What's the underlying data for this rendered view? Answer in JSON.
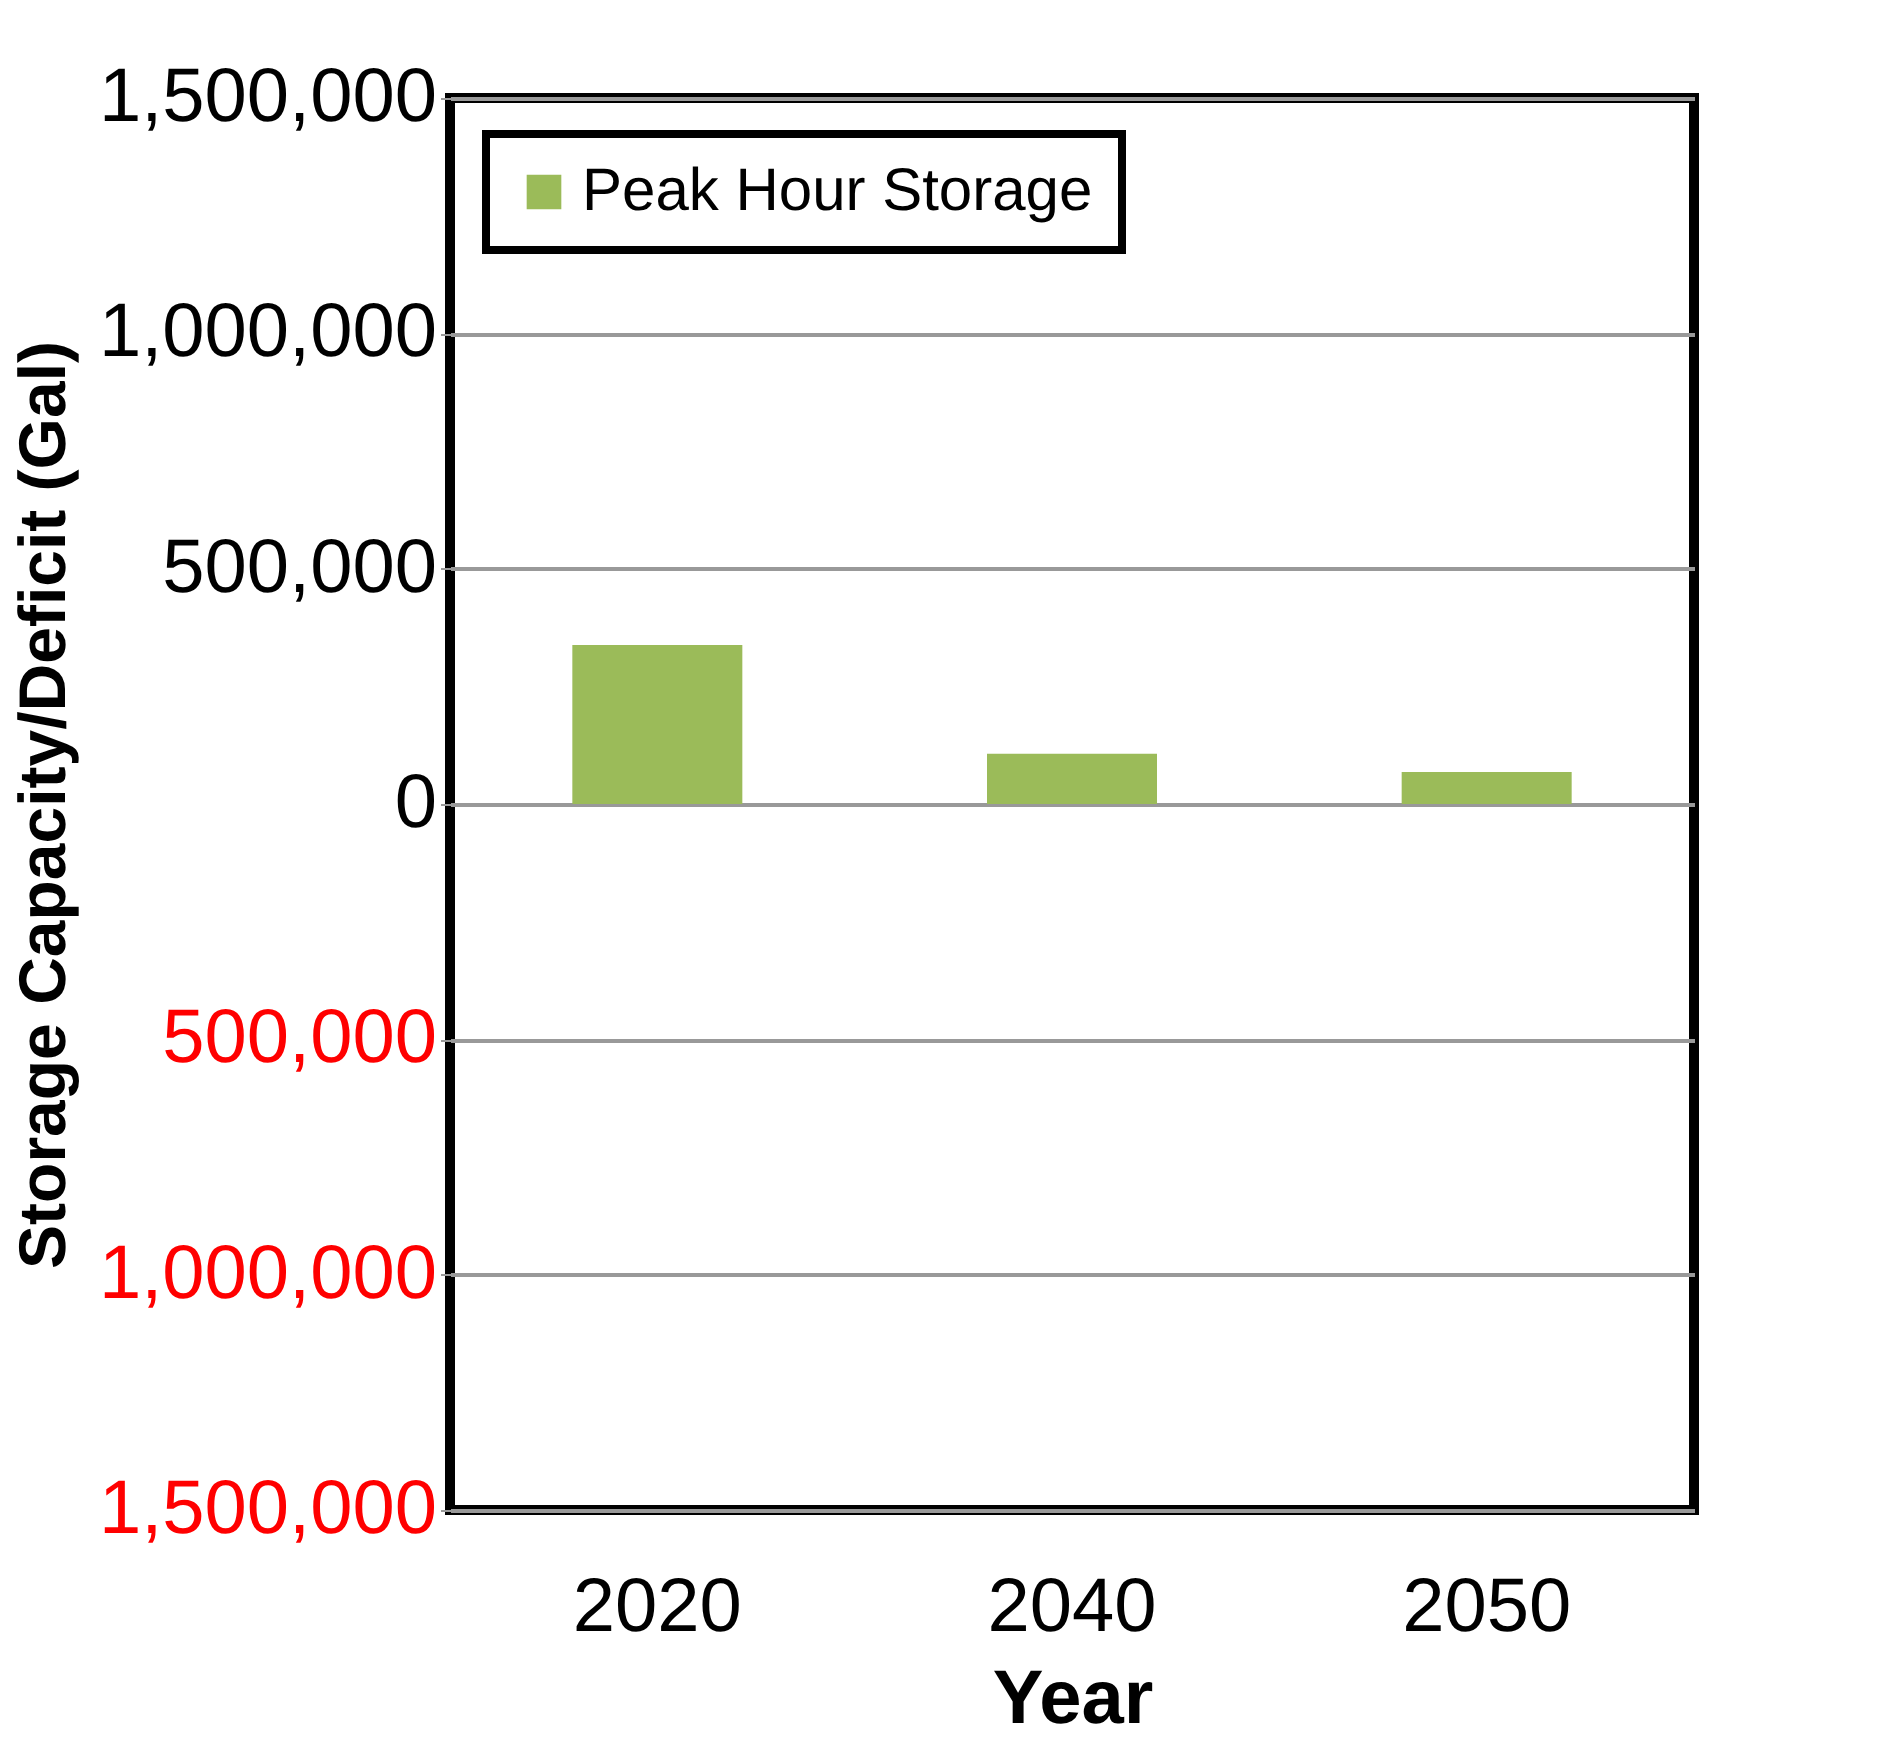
{
  "chart_data": {
    "type": "bar",
    "xlabel": "Year",
    "ylabel": "Storage Capacity/Deficit  (Gal)",
    "categories": [
      "2020",
      "2040",
      "2050"
    ],
    "series": [
      {
        "name": "Peak Hour Storage",
        "color": "#9bbb59",
        "values": [
          338000,
          107000,
          68000
        ]
      }
    ],
    "ylim": [
      -1500000,
      1500000
    ],
    "yticks": [
      {
        "value": -1500000,
        "label": "1,500,000"
      },
      {
        "value": -1000000,
        "label": "1,000,000"
      },
      {
        "value": -500000,
        "label": "500,000"
      },
      0,
      {
        "value": 500000,
        "label": "500,000"
      },
      {
        "value": 1000000,
        "label": "1,000,000"
      },
      {
        "value": 1500000,
        "label": "1,500,000"
      }
    ],
    "grid": "y",
    "legend": "top left"
  }
}
